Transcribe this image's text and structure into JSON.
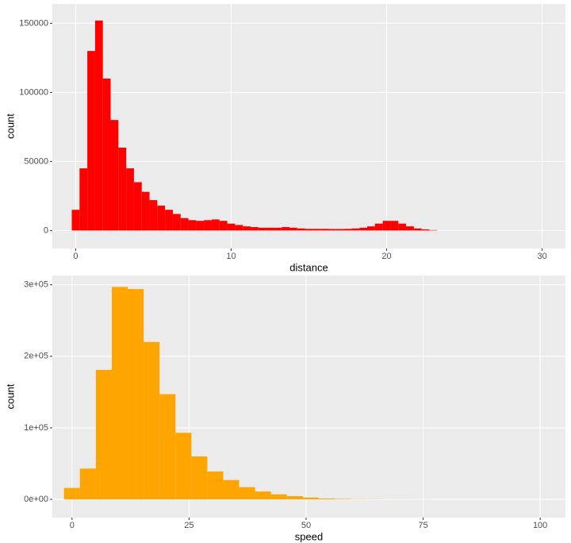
{
  "chart_data": [
    {
      "type": "histogram",
      "x_label": "distance",
      "y_label": "count",
      "color": "#ff0000",
      "bins": [
        -0.25,
        0.25,
        0.75,
        1.25,
        1.75,
        2.25,
        2.75,
        3.25,
        3.75,
        4.25,
        4.75,
        5.25,
        5.75,
        6.25,
        6.75,
        7.25,
        7.75,
        8.25,
        8.75,
        9.25,
        9.75,
        10.25,
        10.75,
        11.25,
        11.75,
        12.25,
        12.75,
        13.25,
        13.75,
        14.25,
        14.75,
        15.25,
        15.75,
        16.25,
        16.75,
        17.25,
        17.75,
        18.25,
        18.75,
        19.25,
        19.75,
        20.25,
        20.75,
        21.25,
        21.75,
        22.25,
        22.75,
        23.25
      ],
      "values": [
        15000,
        45000,
        130000,
        152000,
        110000,
        80000,
        60000,
        45000,
        35000,
        28000,
        22000,
        18000,
        15000,
        12000,
        9000,
        7500,
        7000,
        7500,
        8000,
        7000,
        5000,
        4000,
        3000,
        2500,
        2000,
        2000,
        2000,
        2500,
        2000,
        1500,
        1200,
        1200,
        1200,
        1100,
        1100,
        1200,
        1500,
        2000,
        3000,
        5000,
        7000,
        7000,
        5000,
        3000,
        1500,
        800,
        300
      ],
      "xlim": [
        -1.5,
        31.5
      ],
      "xticks": [
        0,
        10,
        20,
        30
      ],
      "ylim": [
        -13000,
        164000
      ],
      "yticks": [
        0,
        50000,
        100000,
        150000
      ],
      "grid": true
    },
    {
      "type": "histogram",
      "x_label": "speed",
      "y_label": "count",
      "color": "#ffa500",
      "bins": [
        -1.7,
        1.7,
        5.1,
        8.5,
        11.9,
        15.3,
        18.7,
        22.1,
        25.5,
        28.9,
        32.3,
        35.7,
        39.1,
        42.5,
        45.9,
        49.3,
        52.7,
        56.1,
        59.5,
        62.9,
        66.3,
        69.7,
        73.1,
        76.5,
        79.9,
        83.3,
        86.7,
        90.1,
        93.5,
        96.9,
        100.3
      ],
      "values": [
        16000,
        43000,
        181000,
        297000,
        294000,
        220000,
        147000,
        93000,
        60000,
        39000,
        27000,
        17000,
        11000,
        7000,
        4500,
        2500,
        1200,
        600,
        300,
        200,
        100,
        80,
        60,
        40,
        30,
        20,
        10,
        10,
        5,
        5
      ],
      "xlim": [
        -4.2,
        105.4
      ],
      "xticks": [
        0,
        25,
        50,
        75,
        100
      ],
      "ylim": [
        -25500,
        313000
      ],
      "yticks": [
        {
          "value": 0,
          "label": "0e+00"
        },
        {
          "value": 100000,
          "label": "1e+05"
        },
        {
          "value": 200000,
          "label": "2e+05"
        },
        {
          "value": 300000,
          "label": "3e+05"
        }
      ],
      "grid": true
    }
  ]
}
